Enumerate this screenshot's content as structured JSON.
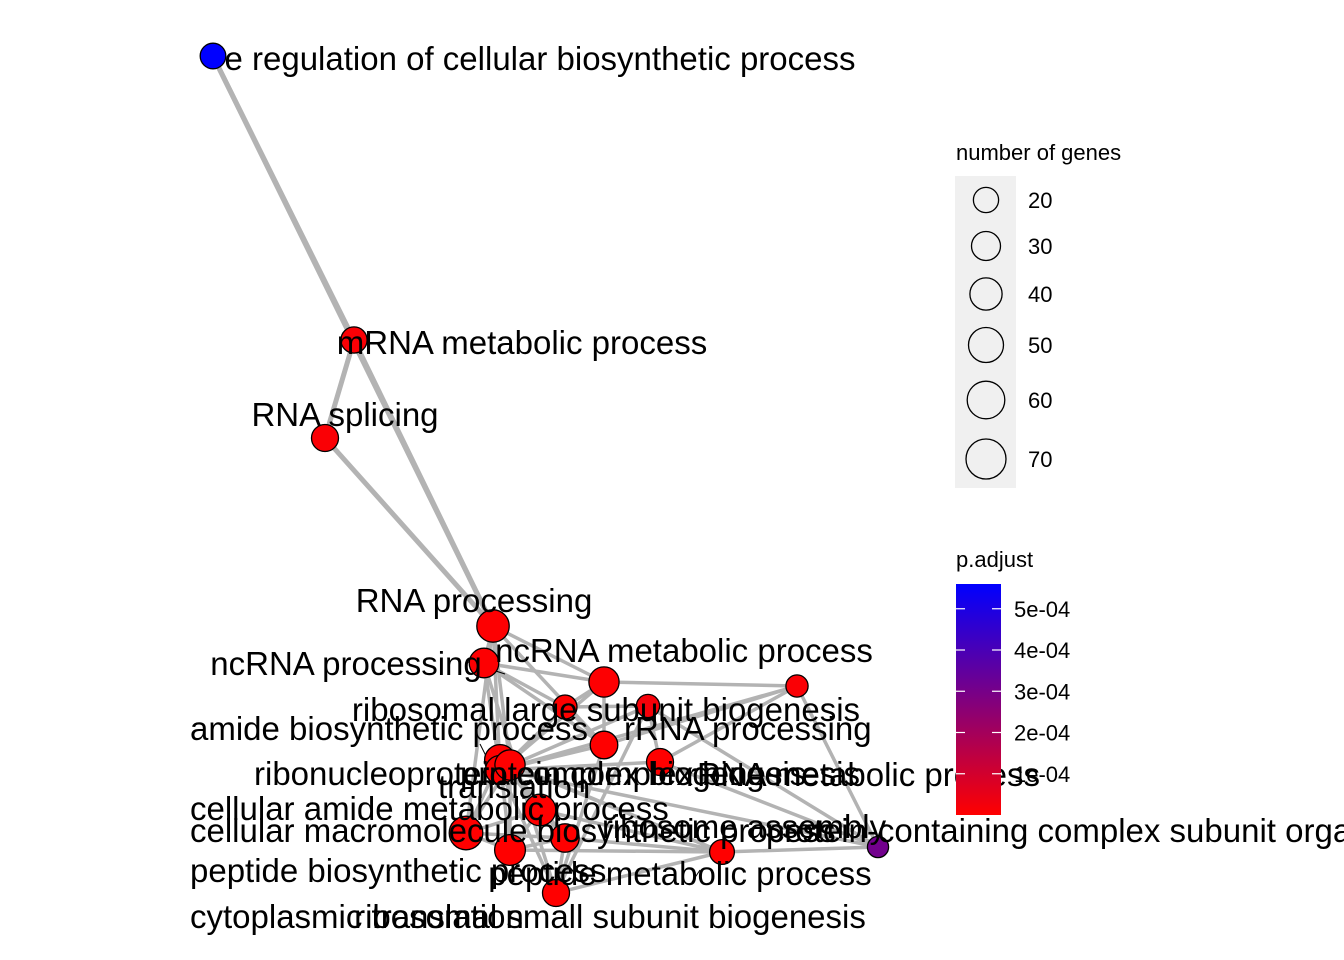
{
  "chart_data": {
    "type": "network",
    "title": "",
    "node_color_low": "#FF0000",
    "node_color_high": "#0000FF",
    "edge_color": "#B3B3B3",
    "nodes": [
      {
        "id": "pos_reg",
        "label": "positive regulation of cellular biosynthetic process",
        "visible_label": "e regulation of cellular biosynthetic process",
        "genes": 26,
        "padj": 0.00056
      },
      {
        "id": "mrna_met",
        "label": "mRNA metabolic process",
        "genes": 28,
        "padj": 1e-05
      },
      {
        "id": "rna_splicing",
        "label": "RNA splicing",
        "genes": 30,
        "padj": 1e-05
      },
      {
        "id": "rna_proc",
        "label": "RNA processing",
        "genes": 48,
        "padj": 5e-06
      },
      {
        "id": "ncrna_met",
        "label": "ncRNA metabolic process",
        "genes": 40,
        "padj": 5e-06
      },
      {
        "id": "ncrna_proc",
        "label": "ncRNA processing",
        "genes": 38,
        "padj": 5e-06
      },
      {
        "id": "rib_large",
        "label": "ribosomal large subunit biogenesis",
        "genes": 22,
        "padj": 1e-06
      },
      {
        "id": "amide_bio",
        "label": "amide biosynthetic process",
        "genes": 42,
        "padj": 1e-06
      },
      {
        "id": "rrna_proc",
        "label": "rRNA processing",
        "genes": 32,
        "padj": 1e-06
      },
      {
        "id": "ribonucleo",
        "label": "ribonucleoprotein complex biogenesis",
        "genes": 36,
        "padj": 1e-06
      },
      {
        "id": "protein_complex",
        "label": "protein complex biogenesis",
        "genes": 30,
        "padj": 1e-06
      },
      {
        "id": "translation",
        "label": "translation",
        "genes": 40,
        "padj": 1e-06
      },
      {
        "id": "rrna_met",
        "label": "rRNA metabolic process",
        "genes": 18,
        "padj": 1e-05
      },
      {
        "id": "cell_amide",
        "label": "cellular amide metabolic process",
        "genes": 45,
        "padj": 1e-06
      },
      {
        "id": "cell_macro",
        "label": "cellular macromolecule biosynthetic process",
        "genes": 52,
        "padj": 1e-06
      },
      {
        "id": "ribosome_asm",
        "label": "ribosome assembly",
        "genes": 20,
        "padj": 2e-05
      },
      {
        "id": "prot_cont",
        "label": "protein-containing complex subunit organization",
        "genes": 16,
        "padj": 0.00031
      },
      {
        "id": "peptide_bio",
        "label": "peptide biosynthetic process",
        "genes": 42,
        "padj": 1e-06
      },
      {
        "id": "peptide_met",
        "label": "peptide metabolic process",
        "genes": 24,
        "padj": 1e-06
      },
      {
        "id": "cyto_trans",
        "label": "cytoplasmic translation",
        "genes": 34,
        "padj": 1e-06
      },
      {
        "id": "rib_small",
        "label": "ribosomal small subunit biogenesis",
        "genes": 30,
        "padj": 1e-06
      }
    ],
    "edges": [
      [
        "pos_reg",
        "mrna_met"
      ],
      [
        "pos_reg",
        "rna_proc"
      ],
      [
        "mrna_met",
        "rna_splicing"
      ],
      [
        "mrna_met",
        "rna_proc"
      ],
      [
        "rna_splicing",
        "rna_proc"
      ],
      [
        "rna_proc",
        "ncrna_met"
      ],
      [
        "rna_proc",
        "ncrna_proc"
      ],
      [
        "rna_proc",
        "rrna_proc"
      ],
      [
        "rna_proc",
        "ribonucleo"
      ],
      [
        "rna_proc",
        "translation"
      ],
      [
        "rna_proc",
        "cell_macro"
      ],
      [
        "ncrna_met",
        "ncrna_proc"
      ],
      [
        "ncrna_met",
        "rrna_met"
      ],
      [
        "ncrna_met",
        "rrna_proc"
      ],
      [
        "ncrna_met",
        "rib_large"
      ],
      [
        "ncrna_met",
        "ribonucleo"
      ],
      [
        "ncrna_proc",
        "rrna_proc"
      ],
      [
        "ncrna_proc",
        "rib_large"
      ],
      [
        "ncrna_proc",
        "ribonucleo"
      ],
      [
        "ncrna_proc",
        "rib_small"
      ],
      [
        "rib_large",
        "ribonucleo"
      ],
      [
        "rib_large",
        "rrna_proc"
      ],
      [
        "rib_large",
        "ribosome_asm"
      ],
      [
        "rrna_proc",
        "rrna_met"
      ],
      [
        "rrna_proc",
        "ribonucleo"
      ],
      [
        "rrna_proc",
        "rib_small"
      ],
      [
        "rrna_met",
        "protein_complex"
      ],
      [
        "rrna_met",
        "prot_cont"
      ],
      [
        "rrna_met",
        "ribonucleo"
      ],
      [
        "ribonucleo",
        "protein_complex"
      ],
      [
        "ribonucleo",
        "ribosome_asm"
      ],
      [
        "ribonucleo",
        "rib_small"
      ],
      [
        "ribonucleo",
        "prot_cont"
      ],
      [
        "protein_complex",
        "prot_cont"
      ],
      [
        "protein_complex",
        "ribosome_asm"
      ],
      [
        "ribosome_asm",
        "prot_cont"
      ],
      [
        "ribosome_asm",
        "rib_small"
      ],
      [
        "amide_bio",
        "translation"
      ],
      [
        "amide_bio",
        "cell_amide"
      ],
      [
        "amide_bio",
        "peptide_bio"
      ],
      [
        "amide_bio",
        "peptide_met"
      ],
      [
        "amide_bio",
        "cell_macro"
      ],
      [
        "amide_bio",
        "cyto_trans"
      ],
      [
        "translation",
        "cell_amide"
      ],
      [
        "translation",
        "peptide_bio"
      ],
      [
        "translation",
        "peptide_met"
      ],
      [
        "translation",
        "cyto_trans"
      ],
      [
        "translation",
        "cell_macro"
      ],
      [
        "cell_amide",
        "peptide_bio"
      ],
      [
        "cell_amide",
        "peptide_met"
      ],
      [
        "cell_amide",
        "cell_macro"
      ],
      [
        "cell_amide",
        "cyto_trans"
      ],
      [
        "peptide_bio",
        "peptide_met"
      ],
      [
        "peptide_bio",
        "cyto_trans"
      ],
      [
        "peptide_bio",
        "cell_macro"
      ],
      [
        "peptide_met",
        "cyto_trans"
      ],
      [
        "peptide_met",
        "prot_cont"
      ],
      [
        "cell_macro",
        "cyto_trans"
      ],
      [
        "cyto_trans",
        "rib_small"
      ],
      [
        "rib_small",
        "peptide_met"
      ]
    ],
    "size_legend": {
      "title": "number of genes",
      "values": [
        20,
        30,
        40,
        50,
        60,
        70
      ]
    },
    "color_legend": {
      "title": "p.adjust",
      "min": 0,
      "max": 0.00056,
      "ticks": [
        0.0001,
        0.0002,
        0.0003,
        0.0004,
        0.0005
      ],
      "tick_labels": [
        "1e-04",
        "2e-04",
        "3e-04",
        "4e-04",
        "5e-04"
      ]
    },
    "legend_position": "right"
  }
}
